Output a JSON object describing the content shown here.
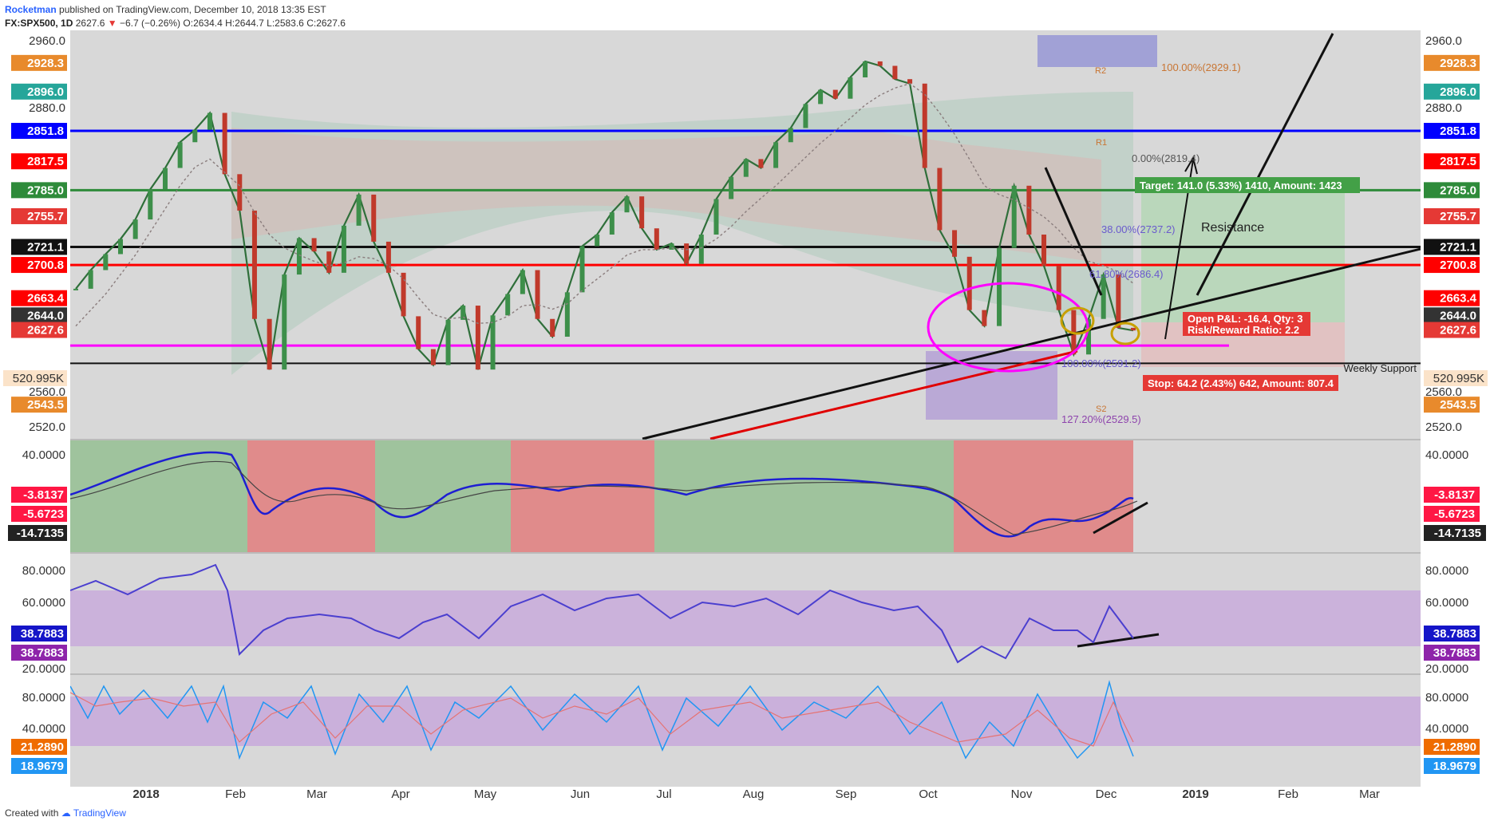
{
  "header": {
    "author": "Rocketman",
    "published": "published on TradingView.com, December 10, 2018 13:35 EST",
    "symbol": "FX:SPX500, 1D",
    "last": "2627.6",
    "change": "−6.7 (−0.26%)",
    "ohlc": "O:2634.4 H:2644.7 L:2583.6 C:2627.6"
  },
  "footer": {
    "created_with": "Created with",
    "brand": "TradingView"
  },
  "colors": {
    "up": "#3d8f4a",
    "down": "#c0392b",
    "support_magenta": "#ff00ff",
    "resistance_red": "#ff0000",
    "blue_line": "#0000ff",
    "brown_line": "#8b3a2a"
  },
  "chart_data": [
    {
      "type": "line",
      "panel": "price",
      "ylim": [
        2505,
        2965
      ],
      "y_ticks": [
        "2960.0",
        "2880.0",
        "2560.0",
        "2520.0"
      ],
      "x_ticks": [
        "2018",
        "Feb",
        "Mar",
        "Apr",
        "May",
        "Jun",
        "Jul",
        "Aug",
        "Sep",
        "Oct",
        "Nov",
        "Dec",
        "2019",
        "Feb",
        "Mar"
      ],
      "series": [
        {
          "values": [
            2674,
            2695,
            2713,
            2730,
            2752,
            2786,
            2810,
            2839,
            2853,
            2872,
            2803,
            2762,
            2640,
            2583,
            2690,
            2731,
            2716,
            2692,
            2745,
            2780,
            2727,
            2692,
            2643,
            2606,
            2588,
            2639,
            2655,
            2583,
            2644,
            2668,
            2695,
            2640,
            2620,
            2670,
            2722,
            2735,
            2760,
            2778,
            2742,
            2718,
            2725,
            2702,
            2735,
            2775,
            2800,
            2820,
            2810,
            2839,
            2855,
            2882,
            2898,
            2888,
            2912,
            2930,
            2925,
            2910,
            2905,
            2810,
            2740,
            2710,
            2650,
            2632,
            2720,
            2790,
            2735,
            2700,
            2650,
            2600,
            2640,
            2690,
            2630,
            2627
          ]
        },
        {
          "values": [
            2632,
            2650,
            2668,
            2690,
            2712,
            2738,
            2764,
            2790,
            2811,
            2820,
            2805,
            2790,
            2760,
            2735,
            2720,
            2712,
            2705,
            2700,
            2703,
            2710,
            2708,
            2700,
            2685,
            2664,
            2645,
            2640,
            2642,
            2635,
            2636,
            2643,
            2655,
            2656,
            2651,
            2657,
            2672,
            2685,
            2698,
            2712,
            2718,
            2718,
            2720,
            2718,
            2720,
            2730,
            2744,
            2761,
            2776,
            2790,
            2806,
            2822,
            2838,
            2852,
            2866,
            2881,
            2892,
            2900,
            2905,
            2893,
            2872,
            2848,
            2820,
            2790,
            2780,
            2774,
            2765,
            2755,
            2740,
            2720,
            2705,
            2700,
            2693,
            2680
          ]
        }
      ],
      "levels": [
        {
          "label": "2928.3",
          "value": 2928.3,
          "color": "#e88a2c"
        },
        {
          "label": "2896.0",
          "value": 2896.0,
          "color": "#26a69a"
        },
        {
          "label": "2851.8",
          "value": 2851.8,
          "color": "#0000ff"
        },
        {
          "label": "2817.5",
          "value": 2817.5,
          "color": "#ff0000"
        },
        {
          "label": "2785.0",
          "value": 2785.0,
          "color": "#2e8b3a"
        },
        {
          "label": "2755.7",
          "value": 2755.7,
          "color": "#e53935"
        },
        {
          "label": "2721.1",
          "value": 2721.1,
          "color": "#111111"
        },
        {
          "label": "2700.8",
          "value": 2700.8,
          "color": "#ff0000"
        },
        {
          "label": "2663.4",
          "value": 2663.4,
          "color": "#ff0000"
        },
        {
          "label": "2644.0",
          "value": 2644.0,
          "color": "#333333"
        },
        {
          "label": "2627.6",
          "value": 2627.6,
          "color": "#e53935"
        },
        {
          "label": "2543.5",
          "value": 2543.5,
          "color": "#e88a2c"
        }
      ],
      "volume_label": "520.995K",
      "annotations": {
        "target": "Target: 141.0 (5.33%) 1410, Amount: 1423",
        "stop": "Stop: 64.2 (2.43%) 642, Amount: 807.4",
        "pnl": "Open P&L: -16.4, Qty: 3",
        "rr": "Risk/Reward Ratio: 2.2",
        "resistance": "Resistance",
        "weekly_support": "Weekly Support",
        "fib_0": "0.00%(2819.4)",
        "fib_38": "38.00%(2737.2)",
        "fib_618": "61.80%(2686.4)",
        "fib_100": "100.00%(2591.2)",
        "fib_1272": "127.20%(2529.5)",
        "fib_top": "100.00%(2929.1)",
        "r1": "R1",
        "r2": "R2",
        "s2": "S2"
      }
    },
    {
      "type": "line",
      "panel": "macd",
      "ylim": [
        -22,
        47
      ],
      "y_ticks": [
        "40.0000"
      ],
      "levels": [
        {
          "label": "-3.8137",
          "color": "#ff1744"
        },
        {
          "label": "-5.6723",
          "color": "#ff1744"
        },
        {
          "label": "-14.7135",
          "color": "#222222"
        }
      ]
    },
    {
      "type": "line",
      "panel": "rsi",
      "ylim": [
        17,
        86
      ],
      "y_ticks": [
        "80.0000",
        "60.0000",
        "20.0000"
      ],
      "levels": [
        {
          "label": "38.7883",
          "color": "#1515c8"
        },
        {
          "label": "38.7883",
          "color": "#8e24aa"
        }
      ]
    },
    {
      "type": "line",
      "panel": "stoch",
      "ylim": [
        10,
        90
      ],
      "y_ticks": [
        "80.0000",
        "40.0000"
      ],
      "levels": [
        {
          "label": "21.2890",
          "color": "#ef6c00"
        },
        {
          "label": "18.9679",
          "color": "#2196f3"
        }
      ]
    }
  ]
}
